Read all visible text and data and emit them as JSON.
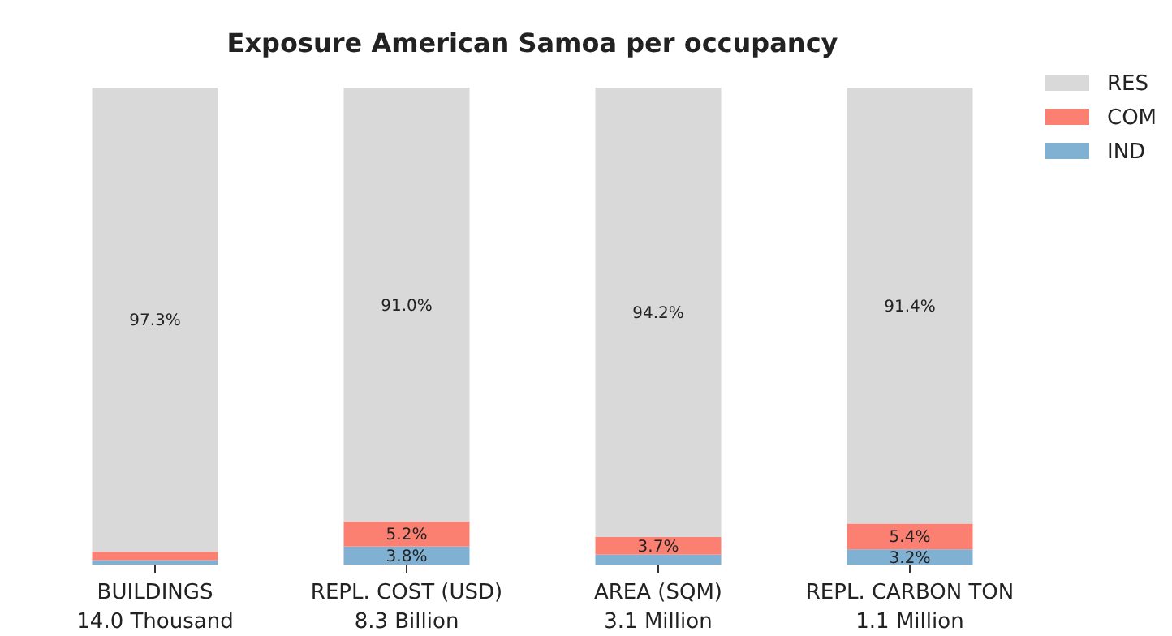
{
  "chart_data": {
    "type": "bar",
    "title": "Exposure American Samoa per occupancy",
    "stacked": true,
    "legend": "top right",
    "categories": [
      "BUILDINGS\n14.0 Thousand",
      "REPL. COST (USD)\n8.3 Billion",
      "AREA (SQM)\n3.1 Million",
      "REPL. CARBON TON\n1.1 Million"
    ],
    "series": [
      {
        "name": "IND",
        "color": "#80b1d3",
        "values": [
          0.9,
          3.8,
          2.1,
          3.2
        ],
        "value_labels": [
          null,
          "3.8%",
          null,
          "3.2%"
        ]
      },
      {
        "name": "COM",
        "color": "#fb8072",
        "values": [
          1.8,
          5.2,
          3.7,
          5.4
        ],
        "value_labels": [
          null,
          "5.2%",
          "3.7%",
          "5.4%"
        ]
      },
      {
        "name": "RES",
        "color": "#d9d9d9",
        "values": [
          97.3,
          91.0,
          94.2,
          91.4
        ],
        "value_labels": [
          "97.3%",
          "91.0%",
          "94.2%",
          "91.4%"
        ]
      }
    ]
  }
}
